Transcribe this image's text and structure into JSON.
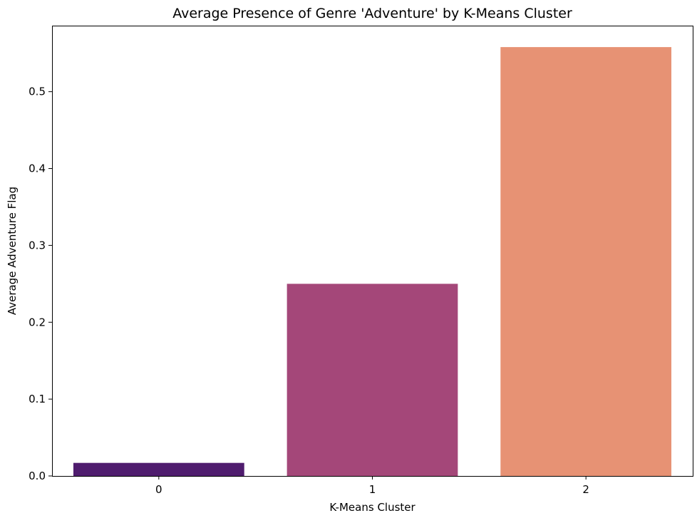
{
  "chart_data": {
    "type": "bar",
    "title": "Average Presence of Genre 'Adventure' by K-Means Cluster",
    "xlabel": "K-Means Cluster",
    "ylabel": "Average Adventure Flag",
    "categories": [
      "0",
      "1",
      "2"
    ],
    "values": [
      0.017,
      0.25,
      0.558
    ],
    "colors": [
      "#4f1c6e",
      "#a44779",
      "#e79274"
    ],
    "ylim": [
      0,
      0.5859
    ],
    "yticks": [
      0.0,
      0.1,
      0.2,
      0.3,
      0.4,
      0.5
    ],
    "ytick_labels": [
      "0.0",
      "0.1",
      "0.2",
      "0.3",
      "0.4",
      "0.5"
    ],
    "grid": false,
    "legend": "none"
  }
}
